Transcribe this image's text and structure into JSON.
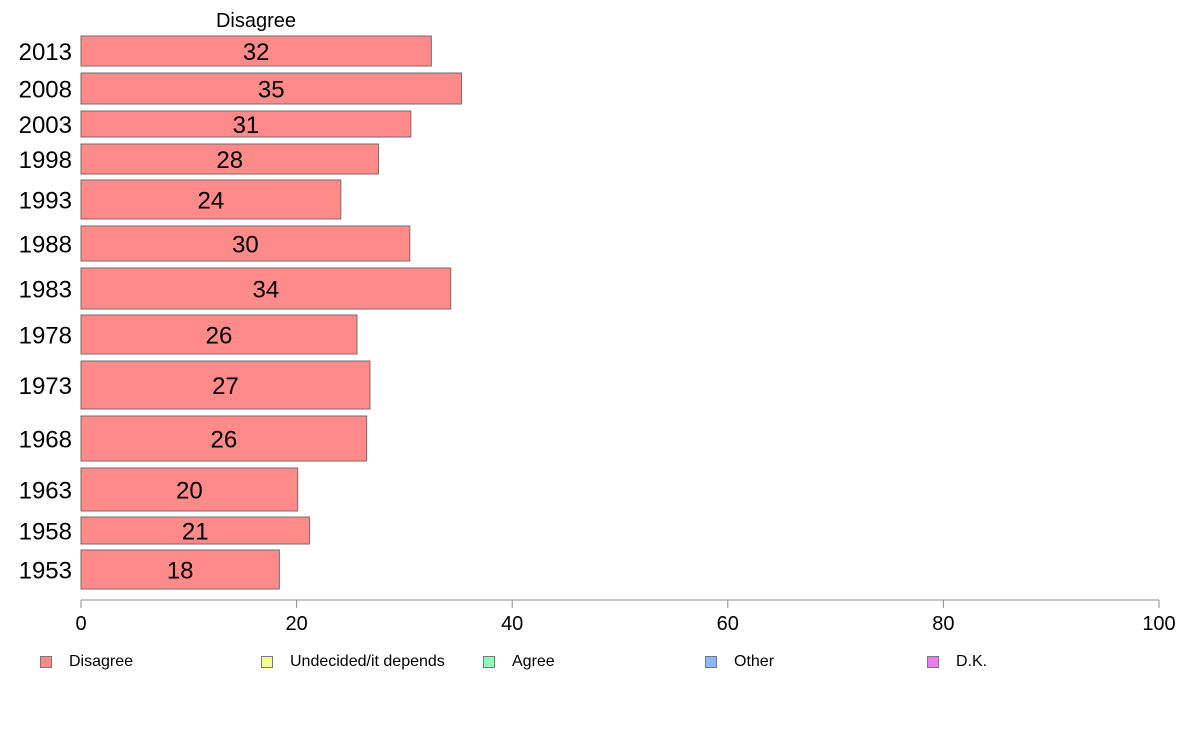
{
  "chart_data": {
    "type": "bar",
    "orientation": "horizontal",
    "title": "Disagree",
    "categories": [
      "2013",
      "2008",
      "2003",
      "1998",
      "1993",
      "1988",
      "1983",
      "1978",
      "1973",
      "1968",
      "1963",
      "1958",
      "1953"
    ],
    "series": [
      {
        "name": "Disagree",
        "values": [
          32.5,
          35.3,
          30.6,
          27.6,
          24.1,
          30.5,
          34.3,
          25.6,
          26.8,
          26.5,
          20.1,
          21.2,
          18.4
        ]
      }
    ],
    "data_labels": [
      "32",
      "35",
      "31",
      "28",
      "24",
      "30",
      "34",
      "26",
      "27",
      "26",
      "20",
      "21",
      "18"
    ],
    "xlim": [
      0,
      100
    ],
    "xticks": [
      "0",
      "20",
      "40",
      "60",
      "80",
      "100"
    ],
    "grid": false,
    "legend_position": "bottom"
  },
  "legend": [
    {
      "label": "Disagree",
      "color": "#ff8a8a"
    },
    {
      "label": "Undecided/it depends",
      "color": "#f3ff8c"
    },
    {
      "label": "Agree",
      "color": "#8affb8"
    },
    {
      "label": "Other",
      "color": "#8cb8ff"
    },
    {
      "label": "D.K.",
      "color": "#ea7cf0"
    }
  ]
}
